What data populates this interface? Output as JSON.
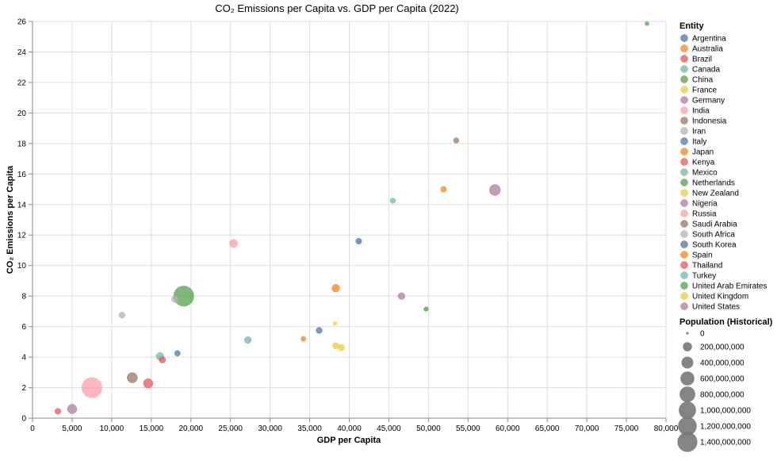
{
  "chart_data": {
    "type": "scatter",
    "title": "CO₂ Emissions per Capita vs. GDP per Capita (2022)",
    "xlabel": "GDP per Capita",
    "ylabel": "CO₂ Emissions per Capita",
    "xlim": [
      0,
      80000
    ],
    "ylim": [
      0,
      26
    ],
    "x_ticks": [
      0,
      5000,
      10000,
      15000,
      20000,
      25000,
      30000,
      35000,
      40000,
      45000,
      50000,
      55000,
      60000,
      65000,
      70000,
      75000,
      80000
    ],
    "x_tick_labels": [
      "0",
      "5,000",
      "10,000",
      "15,000",
      "20,000",
      "25,000",
      "30,000",
      "35,000",
      "40,000",
      "45,000",
      "50,000",
      "55,000",
      "60,000",
      "65,000",
      "70,000",
      "75,000",
      "80,000"
    ],
    "y_ticks": [
      0,
      2,
      4,
      6,
      8,
      10,
      12,
      14,
      16,
      18,
      20,
      22,
      24,
      26
    ],
    "y_tick_labels": [
      "0",
      "2",
      "4",
      "6",
      "8",
      "10",
      "12",
      "14",
      "16",
      "18",
      "20",
      "22",
      "24",
      "26"
    ],
    "grid": true,
    "legend_title": "Entity",
    "size_legend_title": "Population (Historical)",
    "size_legend": [
      {
        "label": "0",
        "value": 0
      },
      {
        "label": "200,000,000",
        "value": 200000000
      },
      {
        "label": "400,000,000",
        "value": 400000000
      },
      {
        "label": "600,000,000",
        "value": 600000000
      },
      {
        "label": "800,000,000",
        "value": 800000000
      },
      {
        "label": "1,000,000,000",
        "value": 1000000000
      },
      {
        "label": "1,200,000,000",
        "value": 1200000000
      },
      {
        "label": "1,400,000,000",
        "value": 1400000000
      }
    ],
    "legend_placement": "right",
    "series": [
      {
        "name": "Argentina",
        "color": "#4c78a8",
        "x": 18300,
        "y": 4.25,
        "population": 46000000
      },
      {
        "name": "Australia",
        "color": "#f58518",
        "x": 34200,
        "y": 5.2,
        "population": 26000000
      },
      {
        "name": "Brazil",
        "color": "#e45756",
        "x": 14600,
        "y": 2.28,
        "population": 215000000
      },
      {
        "name": "Canada",
        "color": "#72b7b2",
        "x": 45500,
        "y": 14.25,
        "population": 38000000
      },
      {
        "name": "China",
        "color": "#54a24b",
        "x": 19100,
        "y": 8.0,
        "population": 1425000000
      },
      {
        "name": "France",
        "color": "#eeca3b",
        "x": 38300,
        "y": 4.75,
        "population": 66000000
      },
      {
        "name": "Germany",
        "color": "#b279a2",
        "x": 46600,
        "y": 8.0,
        "population": 84000000
      },
      {
        "name": "India",
        "color": "#ff9da6",
        "x": 7500,
        "y": 2.0,
        "population": 1417000000
      },
      {
        "name": "Indonesia",
        "color": "#9d755d",
        "x": 12600,
        "y": 2.65,
        "population": 275000000
      },
      {
        "name": "Iran",
        "color": "#bab0ac",
        "x": 18000,
        "y": 7.8,
        "population": 89000000
      },
      {
        "name": "Italy",
        "color": "#4c78a8",
        "x": 36200,
        "y": 5.75,
        "population": 59000000
      },
      {
        "name": "Japan",
        "color": "#f58518",
        "x": 38300,
        "y": 8.52,
        "population": 125000000
      },
      {
        "name": "Kenya",
        "color": "#e45756",
        "x": 3200,
        "y": 0.45,
        "population": 54000000
      },
      {
        "name": "Mexico",
        "color": "#72b7b2",
        "x": 16100,
        "y": 4.05,
        "population": 127000000
      },
      {
        "name": "Netherlands",
        "color": "#54a24b",
        "x": 49700,
        "y": 7.15,
        "population": 18000000
      },
      {
        "name": "New Zealand",
        "color": "#eeca3b",
        "x": 38200,
        "y": 6.2,
        "population": 5000000
      },
      {
        "name": "Nigeria",
        "color": "#b279a2",
        "x": 5000,
        "y": 0.6,
        "population": 219000000
      },
      {
        "name": "Russia",
        "color": "#ff9da6",
        "x": 25400,
        "y": 11.45,
        "population": 144000000
      },
      {
        "name": "Saudi Arabia",
        "color": "#9d755d",
        "x": 53500,
        "y": 18.2,
        "population": 36000000
      },
      {
        "name": "South Africa",
        "color": "#bab0ac",
        "x": 11300,
        "y": 6.75,
        "population": 60000000
      },
      {
        "name": "South Korea",
        "color": "#4c78a8",
        "x": 41200,
        "y": 11.6,
        "population": 52000000
      },
      {
        "name": "Spain",
        "color": "#f58518",
        "x": 51900,
        "y": 15.0,
        "population": 47000000
      },
      {
        "name": "Thailand",
        "color": "#e45756",
        "x": 16400,
        "y": 3.82,
        "population": 72000000
      },
      {
        "name": "Turkey",
        "color": "#72b7b2",
        "x": 27200,
        "y": 5.12,
        "population": 85000000
      },
      {
        "name": "United Arab Emirates",
        "color": "#54a24b",
        "x": 77600,
        "y": 25.85,
        "population": 9400000
      },
      {
        "name": "United Kingdom",
        "color": "#eeca3b",
        "x": 39000,
        "y": 4.63,
        "population": 67000000
      },
      {
        "name": "United States",
        "color": "#b279a2",
        "x": 58400,
        "y": 14.95,
        "population": 333000000
      }
    ]
  }
}
